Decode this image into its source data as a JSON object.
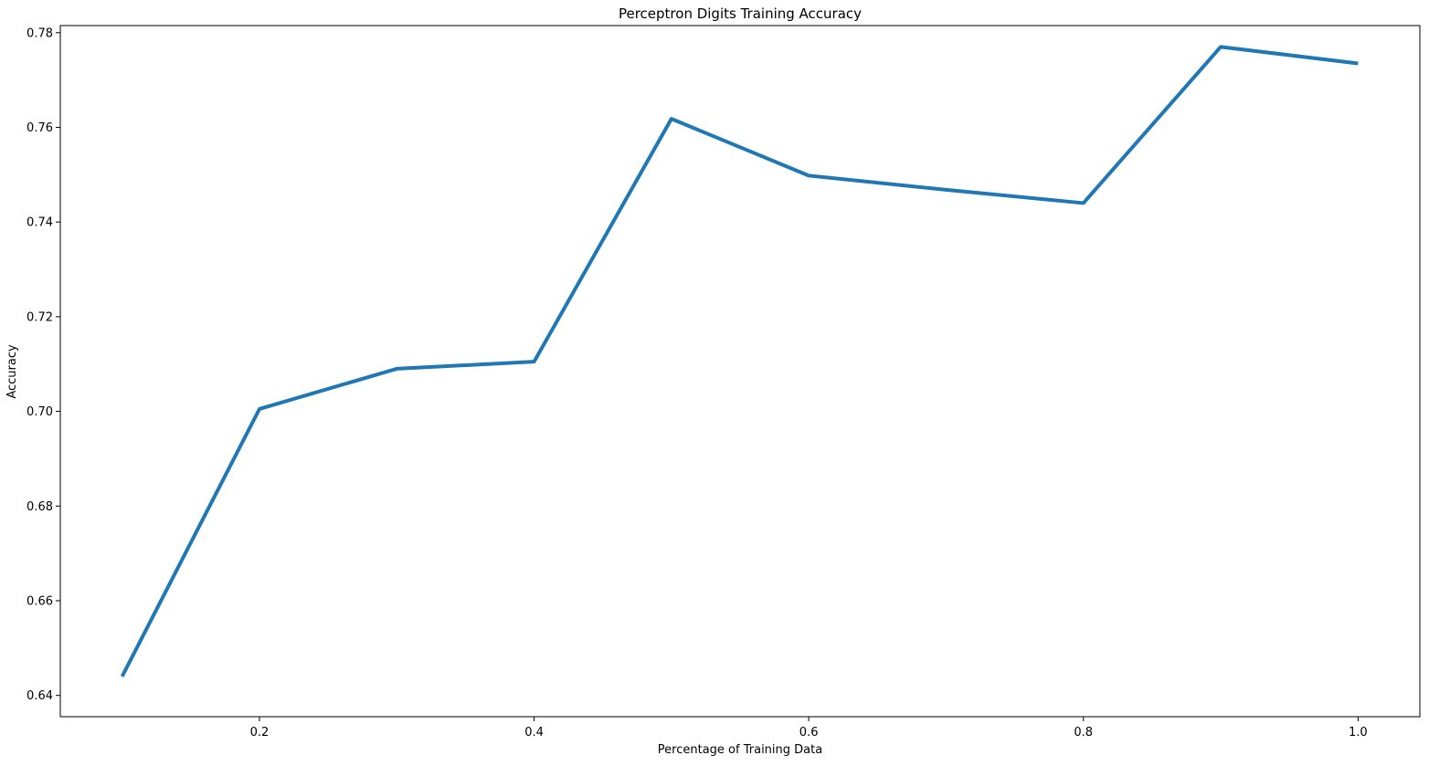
{
  "chart_data": {
    "type": "line",
    "title": "Perceptron Digits Training Accuracy",
    "xlabel": "Percentage of Training Data",
    "ylabel": "Accuracy",
    "xlim": [
      0.055,
      1.045
    ],
    "ylim": [
      0.6355,
      0.7815
    ],
    "xticks": [
      0.2,
      0.4,
      0.6,
      0.8,
      1.0
    ],
    "xtick_labels": [
      "0.2",
      "0.4",
      "0.6",
      "0.8",
      "1.0"
    ],
    "yticks": [
      0.64,
      0.66,
      0.68,
      0.7,
      0.72,
      0.74,
      0.76,
      0.78
    ],
    "ytick_labels": [
      "0.64",
      "0.66",
      "0.68",
      "0.70",
      "0.72",
      "0.74",
      "0.76",
      "0.78"
    ],
    "grid": false,
    "series": [
      {
        "x": [
          0.1,
          0.2,
          0.3,
          0.4,
          0.5,
          0.6,
          0.7,
          0.8,
          0.9,
          1.0
        ],
        "values": [
          0.644,
          0.7005,
          0.709,
          0.7105,
          0.7618,
          0.7498,
          0.7468,
          0.744,
          0.777,
          0.7735
        ],
        "color": "#1f77b4"
      }
    ]
  }
}
